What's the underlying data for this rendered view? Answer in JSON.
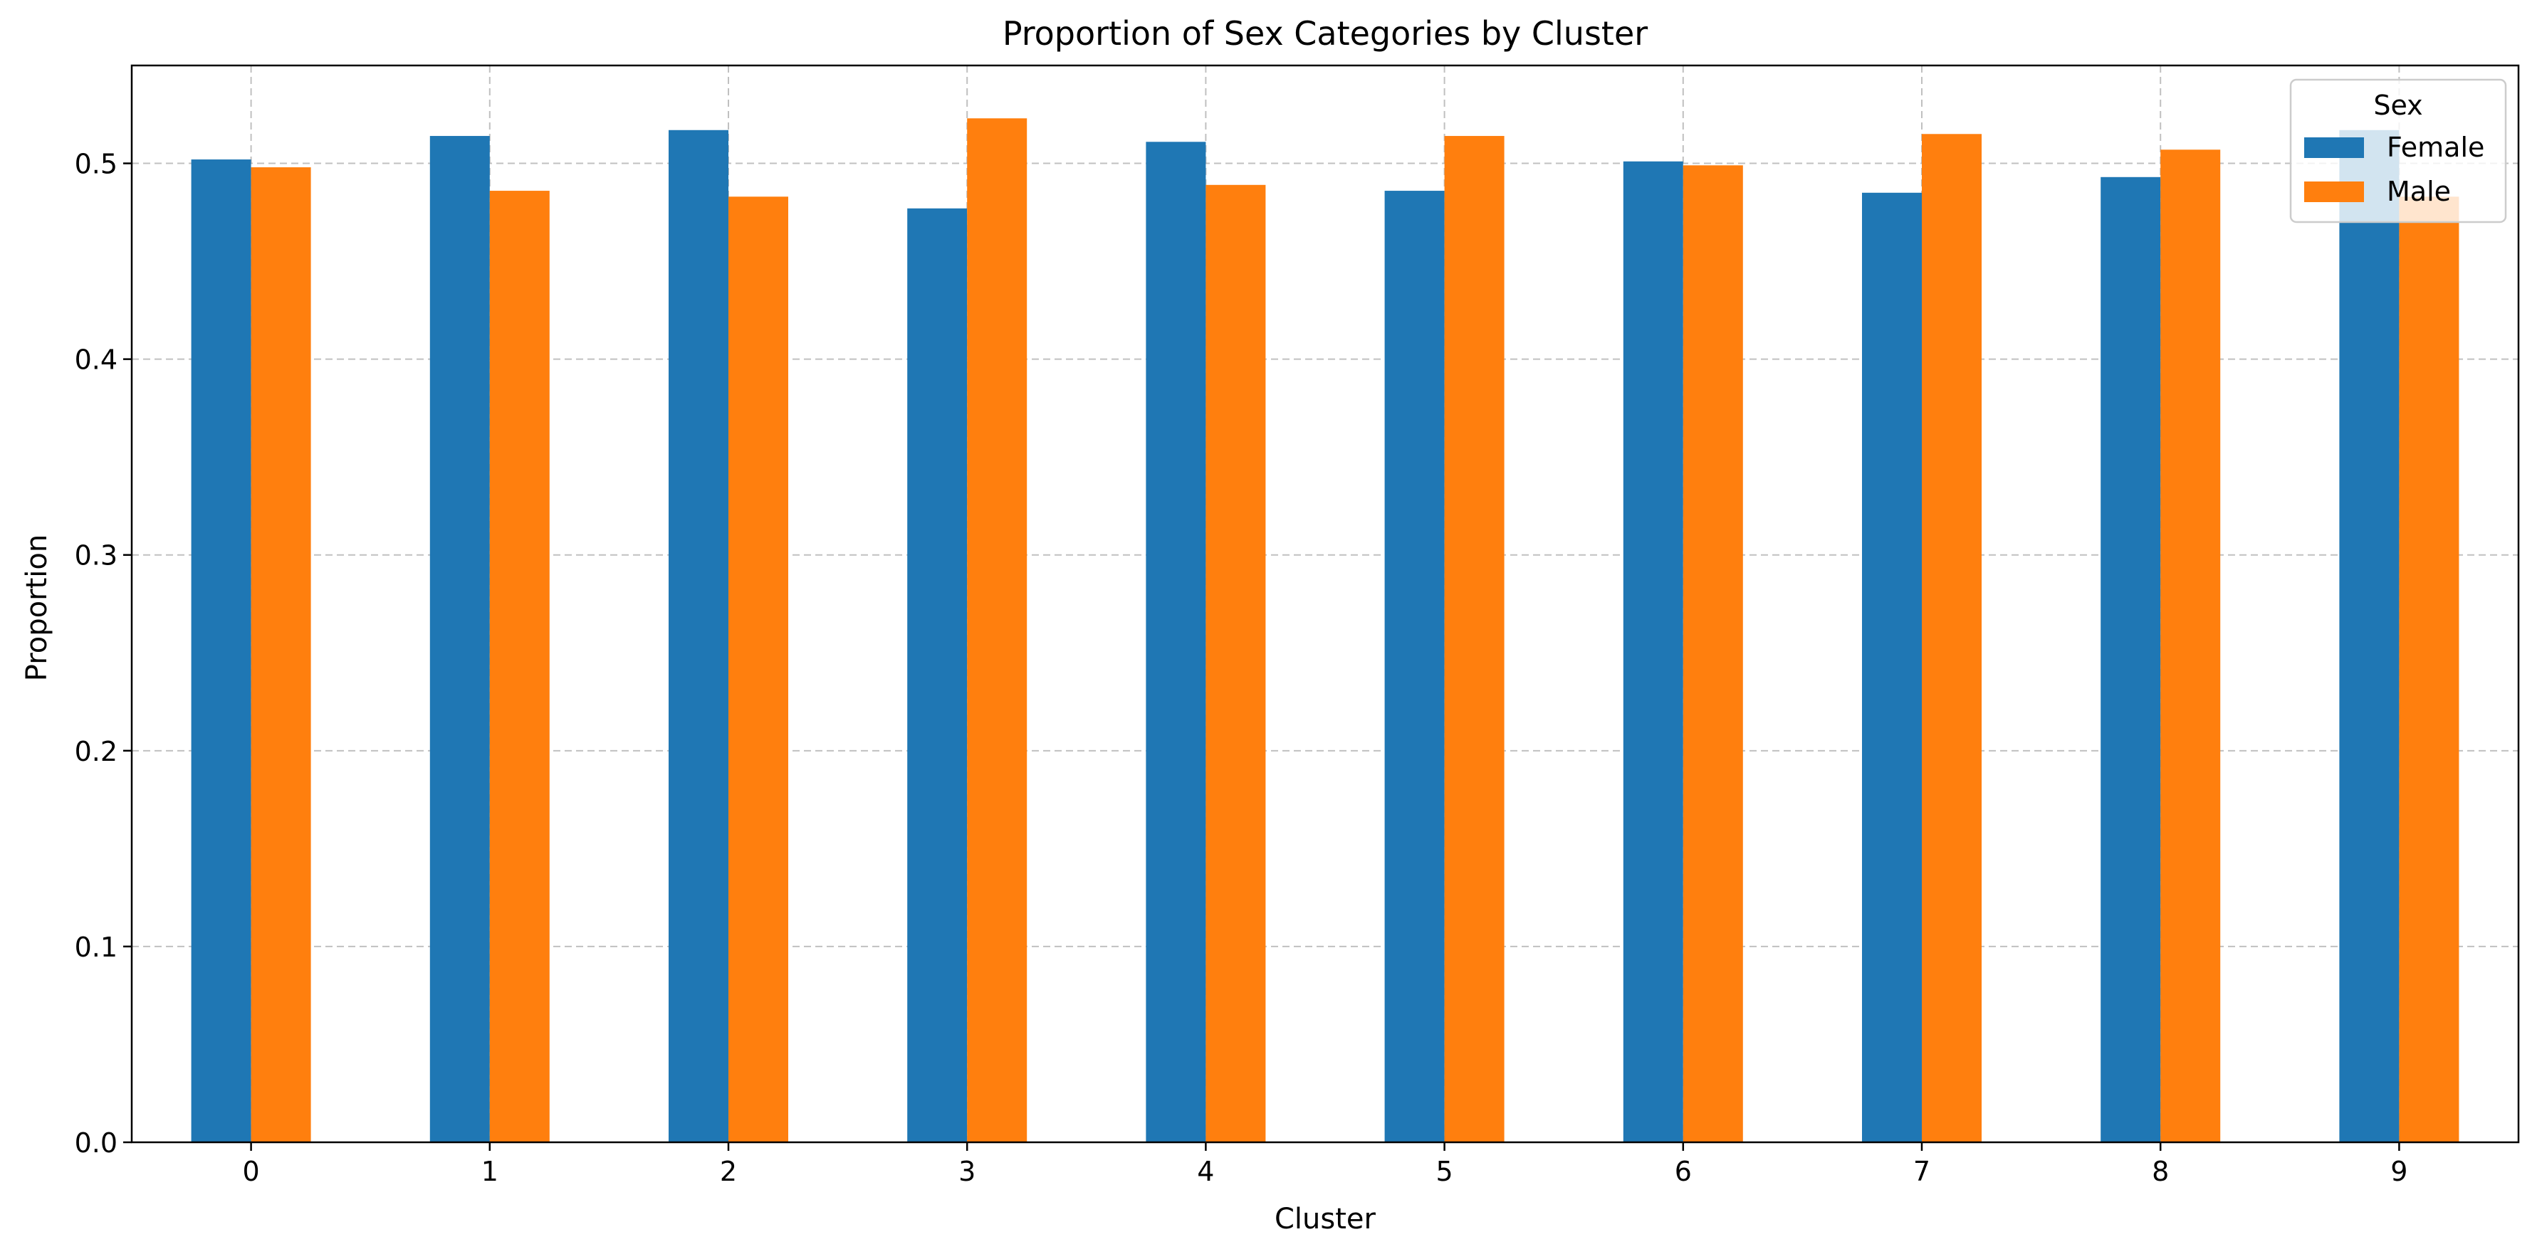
{
  "chart_data": {
    "type": "bar",
    "title": "Proportion of Sex Categories by Cluster",
    "xlabel": "Cluster",
    "ylabel": "Proportion",
    "categories": [
      "0",
      "1",
      "2",
      "3",
      "4",
      "5",
      "6",
      "7",
      "8",
      "9"
    ],
    "series": [
      {
        "name": "Female",
        "color": "#1f77b4",
        "values": [
          0.502,
          0.514,
          0.517,
          0.477,
          0.511,
          0.486,
          0.501,
          0.485,
          0.493,
          0.517
        ]
      },
      {
        "name": "Male",
        "color": "#ff7f0e",
        "values": [
          0.498,
          0.486,
          0.483,
          0.523,
          0.489,
          0.514,
          0.499,
          0.515,
          0.507,
          0.483
        ]
      }
    ],
    "ylim": [
      0,
      0.55
    ],
    "yticks": [
      "0.0",
      "0.1",
      "0.2",
      "0.3",
      "0.4",
      "0.5"
    ],
    "grid": true,
    "legend": {
      "title": "Sex",
      "placement": "top-right"
    }
  }
}
